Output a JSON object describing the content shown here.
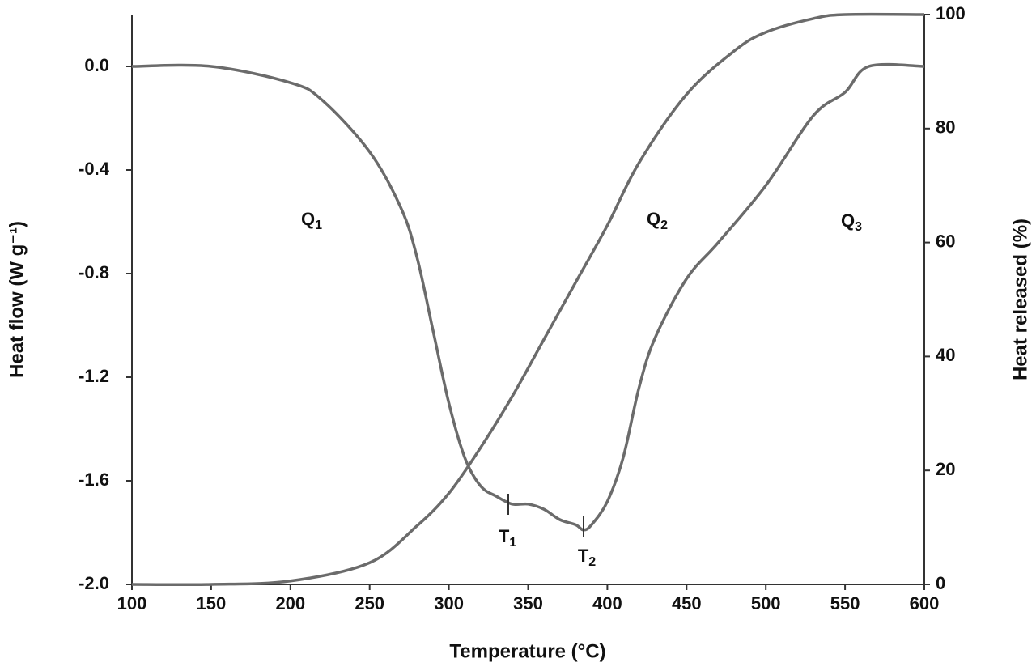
{
  "chart_data": {
    "type": "line",
    "xlabel": "Temperature (°C)",
    "ylabel": "Heat flow (W g⁻¹)",
    "y2label": "Heat released (%)",
    "xlim": [
      100,
      600
    ],
    "xticks": [
      100,
      150,
      200,
      250,
      300,
      350,
      400,
      450,
      500,
      550,
      600
    ],
    "ylim": [
      -2.0,
      0.2
    ],
    "yticks": [
      {
        "value": 0,
        "label": "0.0"
      },
      -0.4,
      -0.8,
      -1.2,
      -1.6,
      {
        "value": -2.0,
        "label": "-2.0"
      }
    ],
    "y2lim": [
      0,
      100
    ],
    "y2ticks": [
      0,
      20,
      40,
      60,
      80,
      100
    ],
    "series": [
      {
        "color": "#6b6b6b",
        "x": [
          100,
          150,
          200,
          220,
          250,
          270,
          280,
          290,
          300,
          310,
          320,
          330,
          340,
          350,
          360,
          370,
          380,
          385,
          390,
          400,
          410,
          420,
          430,
          450,
          470,
          500,
          530,
          550,
          565,
          600
        ],
        "values": [
          0,
          0,
          -0.063,
          -0.13,
          -0.33,
          -0.55,
          -0.74,
          -1.02,
          -1.3,
          -1.51,
          -1.62,
          -1.66,
          -1.69,
          -1.69,
          -1.71,
          -1.75,
          -1.77,
          -1.79,
          -1.77,
          -1.68,
          -1.51,
          -1.24,
          -1.05,
          -0.82,
          -0.68,
          -0.46,
          -0.19,
          -0.1,
          0,
          0
        ]
      },
      {
        "color": "#6b6b6b",
        "axis": "y2",
        "x": [
          100,
          150,
          200,
          250,
          280,
          300,
          320,
          340,
          360,
          380,
          400,
          420,
          450,
          480,
          500,
          530,
          550,
          600
        ],
        "values": [
          0,
          0,
          0.6,
          3.8,
          10.3,
          16,
          24,
          33,
          43,
          53,
          63,
          74,
          86,
          93.6,
          96.9,
          99.3,
          100,
          100
        ]
      }
    ],
    "annotations": [
      {
        "text": "Q",
        "sub": "1"
      },
      {
        "text": "Q",
        "sub": "2"
      },
      {
        "text": "Q",
        "sub": "3"
      },
      {
        "text": "T",
        "sub": "1"
      },
      {
        "text": "T",
        "sub": "2"
      }
    ]
  }
}
